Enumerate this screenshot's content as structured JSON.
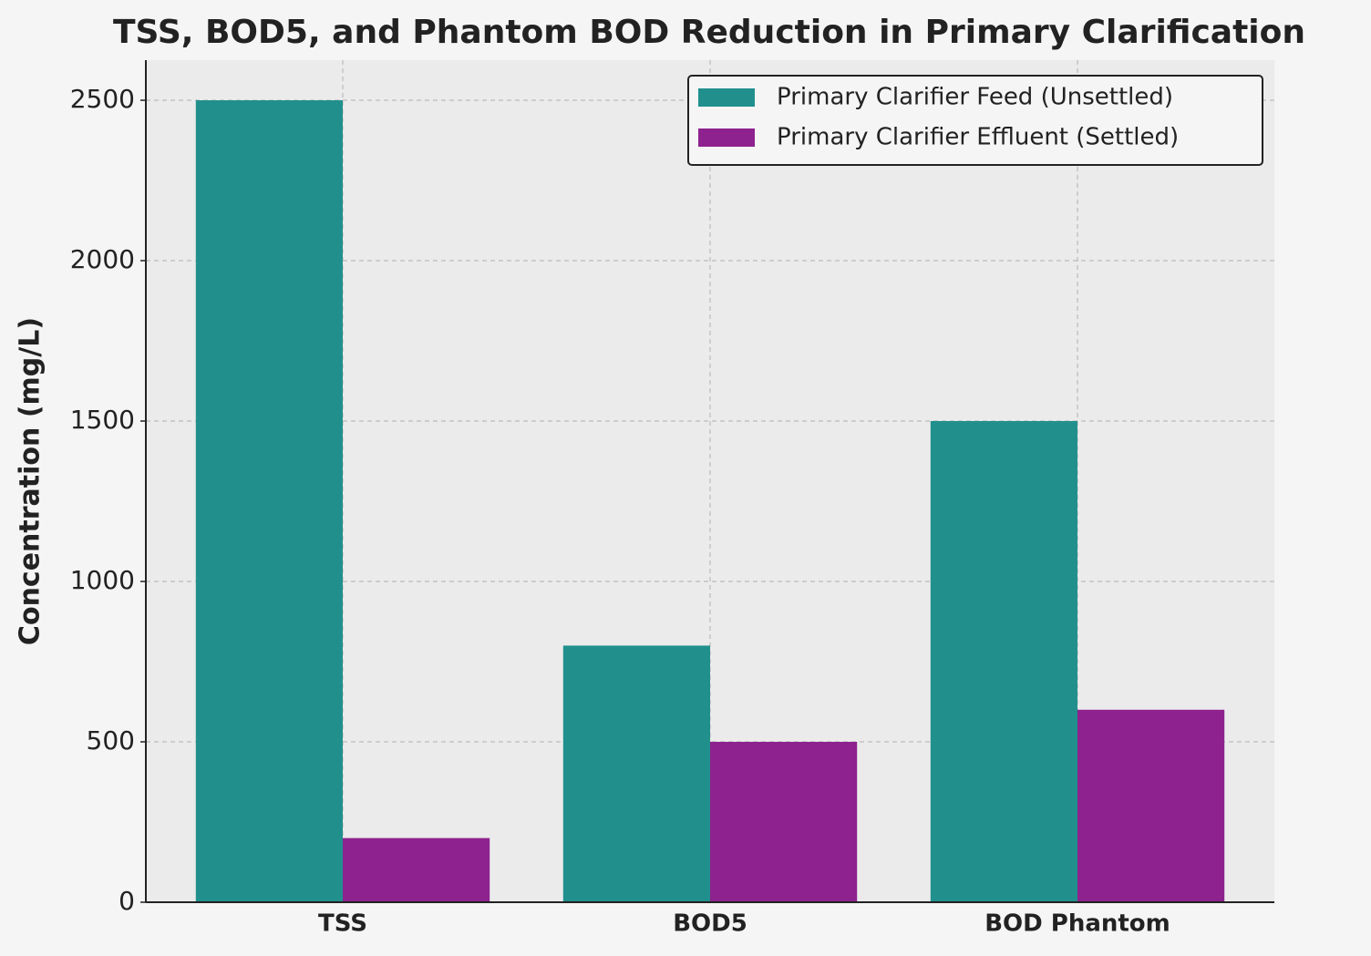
{
  "chart_data": {
    "type": "bar",
    "title": "TSS, BOD5, and Phantom BOD Reduction in Primary Clarification",
    "ylabel": "Concentration (mg/L)",
    "categories": [
      "TSS",
      "BOD5",
      "BOD Phantom"
    ],
    "series": [
      {
        "name": "Primary Clarifier Feed (Unsettled)",
        "color": "#21908d",
        "values": [
          2500,
          800,
          1500
        ]
      },
      {
        "name": "Primary Clarifier Effluent (Settled)",
        "color": "#8e228e",
        "values": [
          200,
          500,
          600
        ]
      }
    ],
    "ylim": [
      0,
      2625
    ],
    "yticks": [
      0,
      500,
      1000,
      1500,
      2000,
      2500
    ],
    "grid": true,
    "legend": "upper right"
  }
}
